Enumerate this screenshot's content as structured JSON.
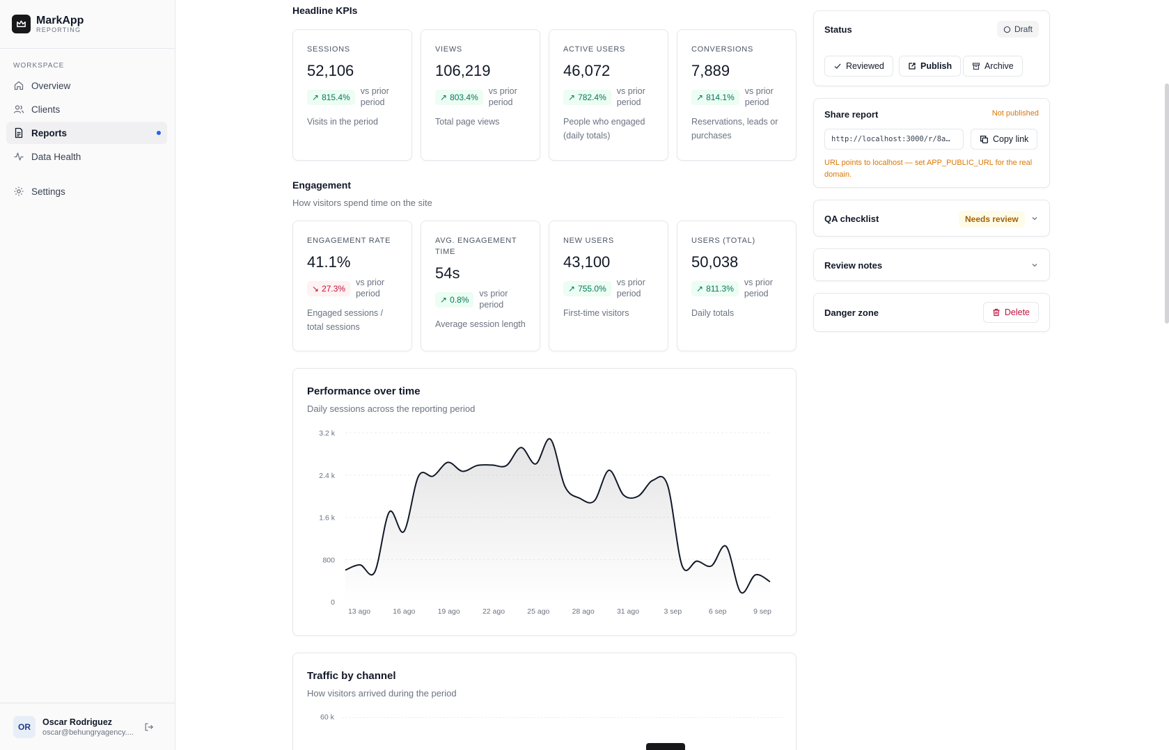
{
  "brand": {
    "name": "MarkApp",
    "sub": "REPORTING"
  },
  "sidebar": {
    "section": "WORKSPACE",
    "items": [
      {
        "label": "Overview",
        "icon": "home-icon"
      },
      {
        "label": "Clients",
        "icon": "users-icon"
      },
      {
        "label": "Reports",
        "icon": "file-icon"
      },
      {
        "label": "Data Health",
        "icon": "activity-icon"
      }
    ],
    "settings": {
      "label": "Settings",
      "icon": "gear-icon"
    }
  },
  "user": {
    "initials": "OR",
    "name": "Oscar Rodriguez",
    "email": "oscar@behungryagency...."
  },
  "headline": {
    "title": "Headline KPIs",
    "cards": [
      {
        "label": "Sessions",
        "value": "52,106",
        "delta": "815.4%",
        "dir": "up",
        "vs": "vs prior period",
        "desc": "Visits in the period"
      },
      {
        "label": "Views",
        "value": "106,219",
        "delta": "803.4%",
        "dir": "up",
        "vs": "vs prior period",
        "desc": "Total page views"
      },
      {
        "label": "Active users",
        "value": "46,072",
        "delta": "782.4%",
        "dir": "up",
        "vs": "vs prior period",
        "desc": "People who engaged (daily totals)"
      },
      {
        "label": "Conversions",
        "value": "7,889",
        "delta": "814.1%",
        "dir": "up",
        "vs": "vs prior period",
        "desc": "Reservations, leads or purchases"
      }
    ]
  },
  "engagement": {
    "title": "Engagement",
    "subtitle": "How visitors spend time on the site",
    "cards": [
      {
        "label": "Engagement rate",
        "value": "41.1%",
        "delta": "27.3%",
        "dir": "down",
        "vs": "vs prior period",
        "desc": "Engaged sessions / total sessions"
      },
      {
        "label": "Avg. engagement time",
        "value": "54s",
        "delta": "0.8%",
        "dir": "up",
        "vs": "vs prior period",
        "desc": "Average session length"
      },
      {
        "label": "New users",
        "value": "43,100",
        "delta": "755.0%",
        "dir": "up",
        "vs": "vs prior period",
        "desc": "First-time visitors"
      },
      {
        "label": "Users (total)",
        "value": "50,038",
        "delta": "811.3%",
        "dir": "up",
        "vs": "vs prior period",
        "desc": "Daily totals"
      }
    ]
  },
  "performance": {
    "title": "Performance over time",
    "subtitle": "Daily sessions across the reporting period"
  },
  "chart_data": {
    "type": "area",
    "title": "Performance over time",
    "subtitle": "Daily sessions across the reporting period",
    "ylim": [
      0,
      3200
    ],
    "yticks": [
      "0",
      "800",
      "1.6 k",
      "2.4 k",
      "3.2 k"
    ],
    "ytick_values": [
      0,
      800,
      1600,
      2400,
      3200
    ],
    "xticks": [
      "13 ago",
      "16 ago",
      "19 ago",
      "22 ago",
      "25 ago",
      "28 ago",
      "31 ago",
      "3 sep",
      "6 sep",
      "9 sep"
    ],
    "grid": true,
    "legend": "none",
    "line_color": "#111827",
    "series": [
      {
        "values": [
          600,
          700,
          560,
          1700,
          1330,
          2380,
          2380,
          2640,
          2470,
          2580,
          2590,
          2580,
          2920,
          2610,
          3080,
          2180,
          1960,
          1910,
          2490,
          2020,
          2000,
          2300,
          2210,
          680,
          770,
          680,
          1050,
          180,
          510,
          380
        ]
      }
    ]
  },
  "traffic": {
    "title": "Traffic by channel",
    "subtitle": "How visitors arrived during the period",
    "ytick_top": "60 k"
  },
  "status": {
    "title": "Status",
    "badge": "Draft",
    "buttons": {
      "reviewed": "Reviewed",
      "publish": "Publish",
      "archive": "Archive"
    }
  },
  "share": {
    "title": "Share report",
    "state": "Not published",
    "url": "http://localhost:3000/r/8a…",
    "copy": "Copy link",
    "warning": "URL points to localhost — set APP_PUBLIC_URL for the real domain."
  },
  "qa": {
    "title": "QA checklist",
    "badge": "Needs review"
  },
  "notes": {
    "title": "Review notes"
  },
  "danger": {
    "title": "Danger zone",
    "delete": "Delete"
  }
}
